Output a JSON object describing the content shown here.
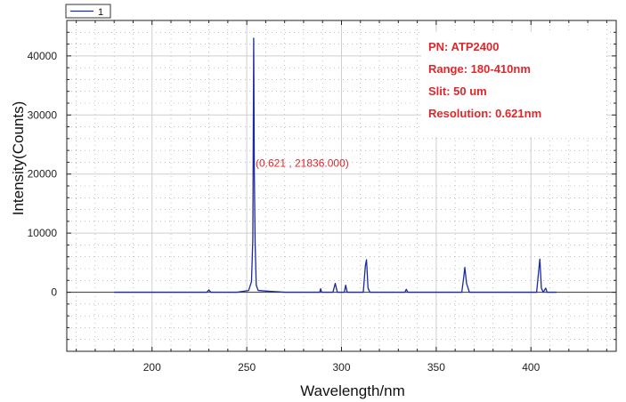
{
  "chart_data": {
    "type": "line",
    "xlabel": "Wavelength/nm",
    "ylabel": "Intensity(Counts)",
    "xlim": [
      155,
      445
    ],
    "ylim": [
      -10000,
      46000
    ],
    "xticks": [
      200,
      250,
      300,
      350,
      400
    ],
    "yticks": [
      0,
      10000,
      20000,
      30000,
      40000
    ],
    "grid": true,
    "legend": {
      "position": "top-left",
      "entries": [
        "1"
      ]
    },
    "series": [
      {
        "name": "1",
        "color": "#1a2aa6",
        "x": [
          180,
          220,
          229,
          230,
          231,
          245,
          251,
          252.5,
          253.2,
          253.65,
          254,
          254.4,
          255,
          256,
          262,
          270,
          288.5,
          289,
          289.5,
          295.5,
          296.7,
          297.8,
          301.5,
          302.2,
          303,
          311.5,
          312.6,
          313.2,
          314,
          315,
          333.5,
          334.2,
          335,
          363.5,
          364.5,
          365.1,
          366,
          367.5,
          403,
          404.2,
          404.7,
          405.5,
          406.5,
          407.8,
          408.5,
          413.5
        ],
        "y": [
          0,
          0,
          0,
          400,
          0,
          0,
          300,
          1800,
          9000,
          43000,
          20000,
          8500,
          1200,
          300,
          150,
          0,
          0,
          600,
          0,
          0,
          1500,
          0,
          0,
          1200,
          0,
          0,
          4500,
          5500,
          700,
          0,
          0,
          500,
          0,
          0,
          2500,
          4200,
          1500,
          0,
          0,
          4000,
          5600,
          700,
          0,
          700,
          0,
          0
        ]
      }
    ],
    "annotations": [
      {
        "text": "(0.621 , 21836.000)",
        "x": 253.7,
        "y": 21836,
        "color": "#e0262a"
      }
    ]
  },
  "info_box": {
    "color": "#e0262a",
    "lines": [
      "PN: ATP2400",
      "Range: 180-410nm",
      "Slit: 50 um",
      "Resolution: 0.621nm"
    ]
  },
  "colors": {
    "axis": "#222222",
    "grid_major": "#cfcfcf",
    "grid_minor": "#9a9a9a",
    "zero_line": "#333333",
    "background": "#ffffff"
  }
}
